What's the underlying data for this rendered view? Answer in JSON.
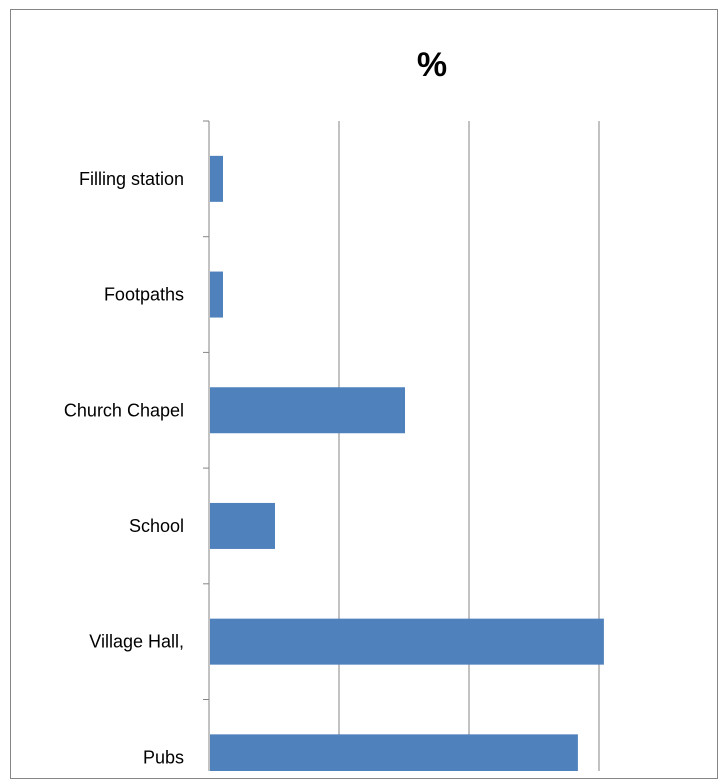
{
  "chart_data": {
    "type": "bar",
    "orientation": "horizontal",
    "title": "%",
    "xlabel": "",
    "ylabel": "",
    "categories": [
      "Filling station",
      "Footpaths",
      "Church Chapel",
      "School",
      "Village Hall,",
      "Pubs"
    ],
    "values": [
      1,
      1,
      15,
      5,
      30.3,
      28.3
    ],
    "xlim": [
      0,
      35
    ],
    "grid": "vertical major gridlines",
    "legend": "none",
    "colors": {
      "bar": "#4F81BD",
      "grid": "#868686",
      "axis": "#868686"
    }
  }
}
